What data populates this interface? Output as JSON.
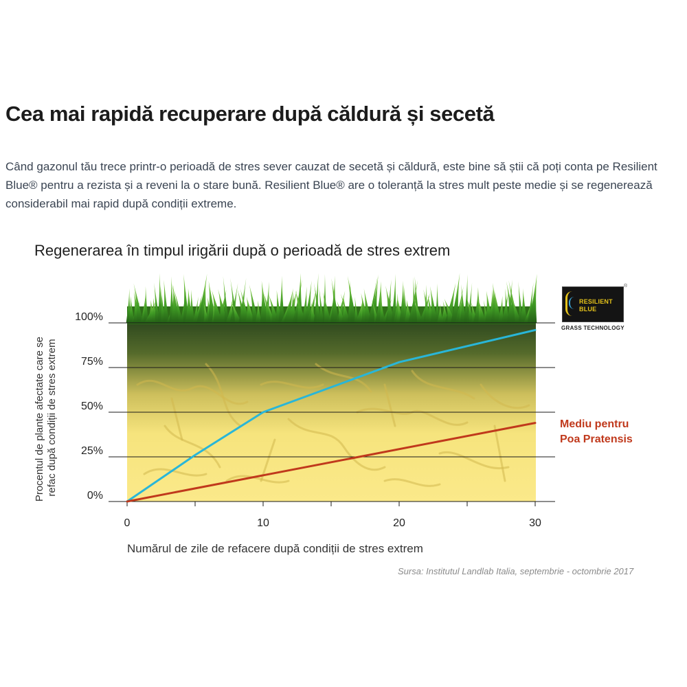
{
  "page": {
    "headline": "Cea mai rapidă recuperare după căldură și secetă",
    "intro": "Când gazonul tău trece printr-o perioadă de stres sever cauzat de secetă și căldură, este bine să știi că poți conta pe Resilient Blue® pentru a rezista și a reveni la o stare bună. Resilient Blue® are o toleranță la stres mult peste medie și se regenerează considerabil mai rapid după condiții extreme.",
    "source": "Sursa: Institutul Landlab Italia, septembrie - octombrie 2017"
  },
  "logo": {
    "line1": "RESILIENT",
    "line2": "BLUE",
    "tagline": "GRASS TECHNOLOGY",
    "registered": "®"
  },
  "chart_data": {
    "type": "line",
    "title": "Regenerarea în timpul irigării după o perioadă de stres extrem",
    "xlabel": "Numărul de zile de refacere după condiții de stres extrem",
    "ylabel": "Procentul de plante afectate care se refac după condiții de stres extrem",
    "xlim": [
      0,
      30
    ],
    "ylim": [
      0,
      100
    ],
    "x_ticks": [
      0,
      10,
      20,
      30
    ],
    "x_minor_ticks": [
      5,
      15,
      25
    ],
    "y_ticks": [
      0,
      25,
      50,
      75,
      100
    ],
    "y_tick_labels": [
      "0%",
      "25%",
      "50%",
      "75%",
      "100%"
    ],
    "grid": true,
    "series": [
      {
        "name": "",
        "color": "#29b6d8",
        "x": [
          0,
          5,
          10,
          20,
          30
        ],
        "y": [
          0,
          26,
          50,
          78,
          96
        ]
      },
      {
        "name": "Mediu pentru Poa Pratensis",
        "name_lines": [
          "Mediu pentru",
          "Poa Pratensis"
        ],
        "color": "#c0391c",
        "x": [
          0,
          30
        ],
        "y": [
          0,
          44
        ]
      }
    ],
    "background": {
      "top_color": "#2f4a1f",
      "bottom_color": "#f8e684",
      "grass_color": "#4aa02a"
    }
  }
}
